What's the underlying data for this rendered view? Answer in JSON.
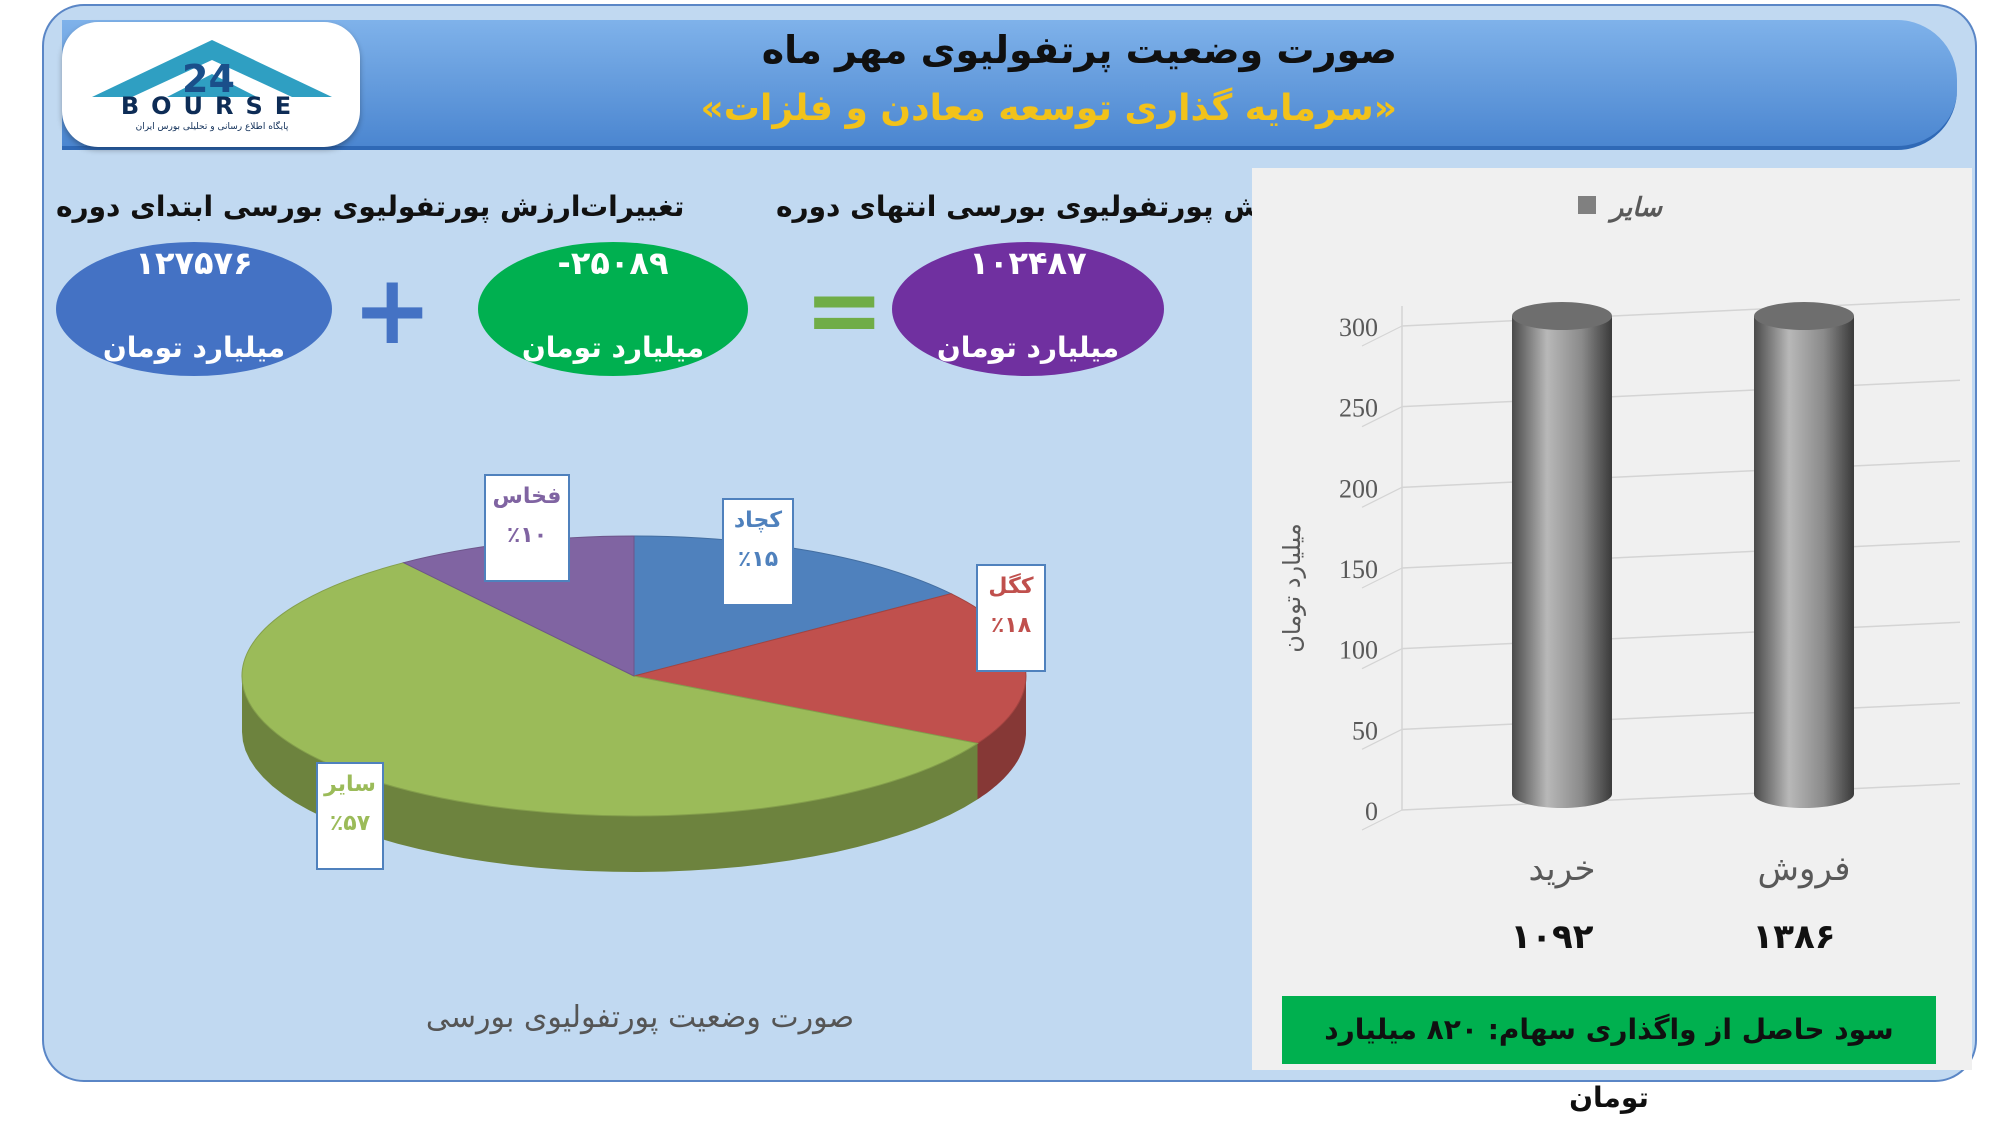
{
  "header": {
    "title": "صورت وضعیت پرتفولیوی مهر ماه",
    "subtitle": "«سرمایه گذاری توسعه معادن و فلزات»"
  },
  "logo": {
    "text": "BOURSE",
    "caption": "پایگاه اطلاع رسانی و تحلیلی بورس ایران"
  },
  "summary": {
    "start": {
      "label": "ارزش پورتفولیوی بورسی ابتدای دوره",
      "value": "۱۲۷۵۷۶",
      "unit": "میلیارد تومان",
      "color": "#4472c4"
    },
    "change": {
      "label": "تغییرات",
      "value": "-۲۵۰۸۹",
      "unit": "میلیارد تومان",
      "color": "#00b050"
    },
    "end": {
      "label": "ارزش پورتفولیوی بورسی انتهای دوره",
      "value": "۱۰۲۴۸۷",
      "unit": "میلیارد تومان",
      "color": "#7030a0"
    },
    "plus_symbol": "+",
    "equals_symbol": "=",
    "plus_color": "#4472c4",
    "equals_color": "#70ad47"
  },
  "chart_data": [
    {
      "type": "pie",
      "title": "صورت وضعیت پورتفولیوی بورسی",
      "slices": [
        {
          "label": "کچاد",
          "value": 15,
          "display": "٪۱۵",
          "color": "#4f81bd"
        },
        {
          "label": "کگل",
          "value": 18,
          "display": "٪۱۸",
          "color": "#c0504d"
        },
        {
          "label": "سایر",
          "value": 57,
          "display": "٪۵۷",
          "color": "#9bbb59"
        },
        {
          "label": "فخاس",
          "value": 10,
          "display": "٪۱۰",
          "color": "#8064a2"
        }
      ]
    },
    {
      "type": "bar",
      "categories": [
        "خرید",
        "فروش"
      ],
      "category_values": [
        "۱۰۹۲",
        "۱۳۸۶"
      ],
      "series": [
        {
          "name": "سایر",
          "values": [
            300,
            300
          ]
        }
      ],
      "ylabel": "میلیارد تومان",
      "yticks": [
        "0",
        "50",
        "100",
        "150",
        "200",
        "250",
        "300"
      ],
      "ylim": [
        0,
        300
      ],
      "grid": true,
      "legend": "top-center",
      "bar_color": "#808080"
    }
  ],
  "profit": {
    "text": "سود حاصل از واگذاری سهام: ۸۲۰ میلیارد تومان"
  }
}
